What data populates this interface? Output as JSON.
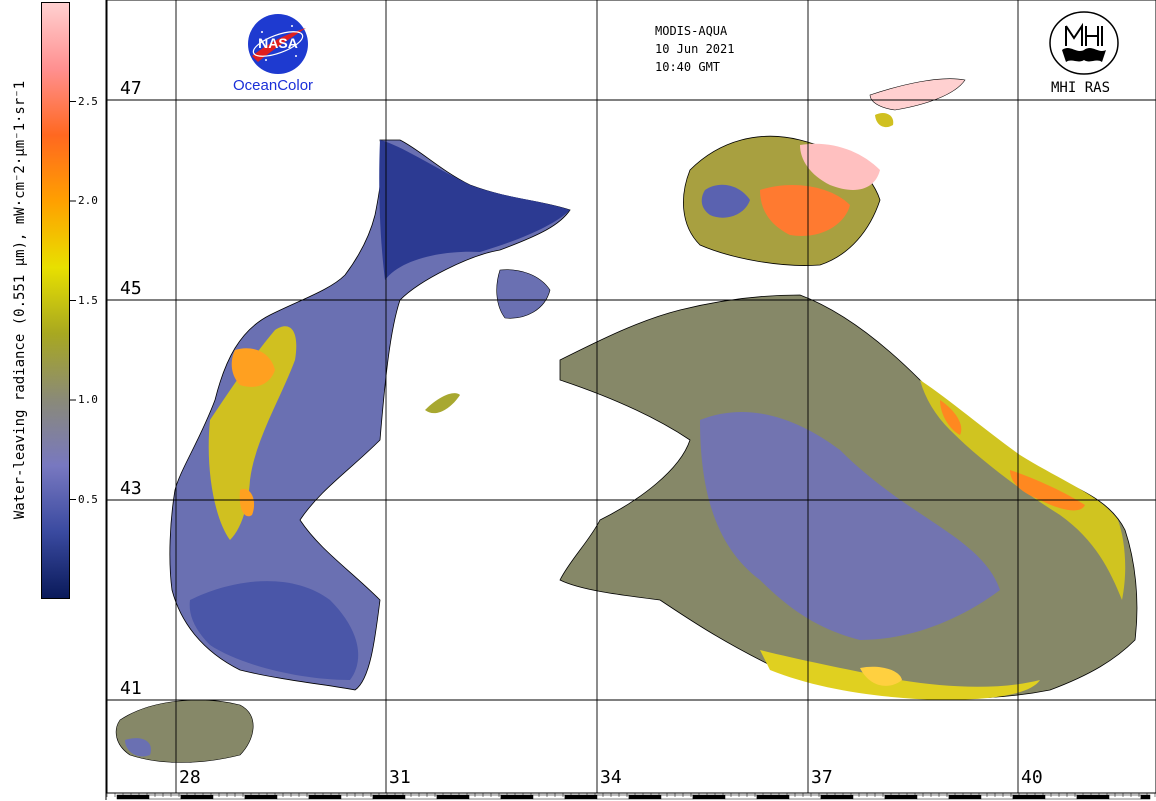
{
  "colorbar": {
    "title": "Water-leaving radiance (0.551 µm), mW·cm⁻2·µm⁻1·sr⁻1",
    "ticks": [
      "2.5",
      "2.0",
      "1.5",
      "1.0",
      "0.5"
    ],
    "tick_values": [
      2.5,
      2.0,
      1.5,
      1.0,
      0.5
    ],
    "range": [
      0.0,
      3.0
    ],
    "colors": [
      "#0a1a5a",
      "#3a4aa0",
      "#7878c0",
      "#8a8a78",
      "#a8a820",
      "#e8e000",
      "#ffa000",
      "#ff6820",
      "#ff9090",
      "#ffd0d0"
    ]
  },
  "map": {
    "lat_labels": [
      "47",
      "45",
      "43",
      "41"
    ],
    "lon_labels": [
      "28",
      "31",
      "34",
      "37",
      "40"
    ],
    "water_colors": {
      "blue": "#5a62b0",
      "deep_blue": "#2c3a92",
      "olive": "#8c8a5a",
      "yellow": "#c8c020",
      "bright_yellow": "#f0e000",
      "orange": "#ff7820",
      "pink": "#ffb0b0"
    }
  },
  "header": {
    "sensor": "MODIS-AQUA",
    "date": "10 Jun 2021",
    "time": "10:40 GMT"
  },
  "logos": {
    "nasa": "NASA",
    "ocean_color": "OceanColor",
    "mhi": "MHI RAS"
  }
}
